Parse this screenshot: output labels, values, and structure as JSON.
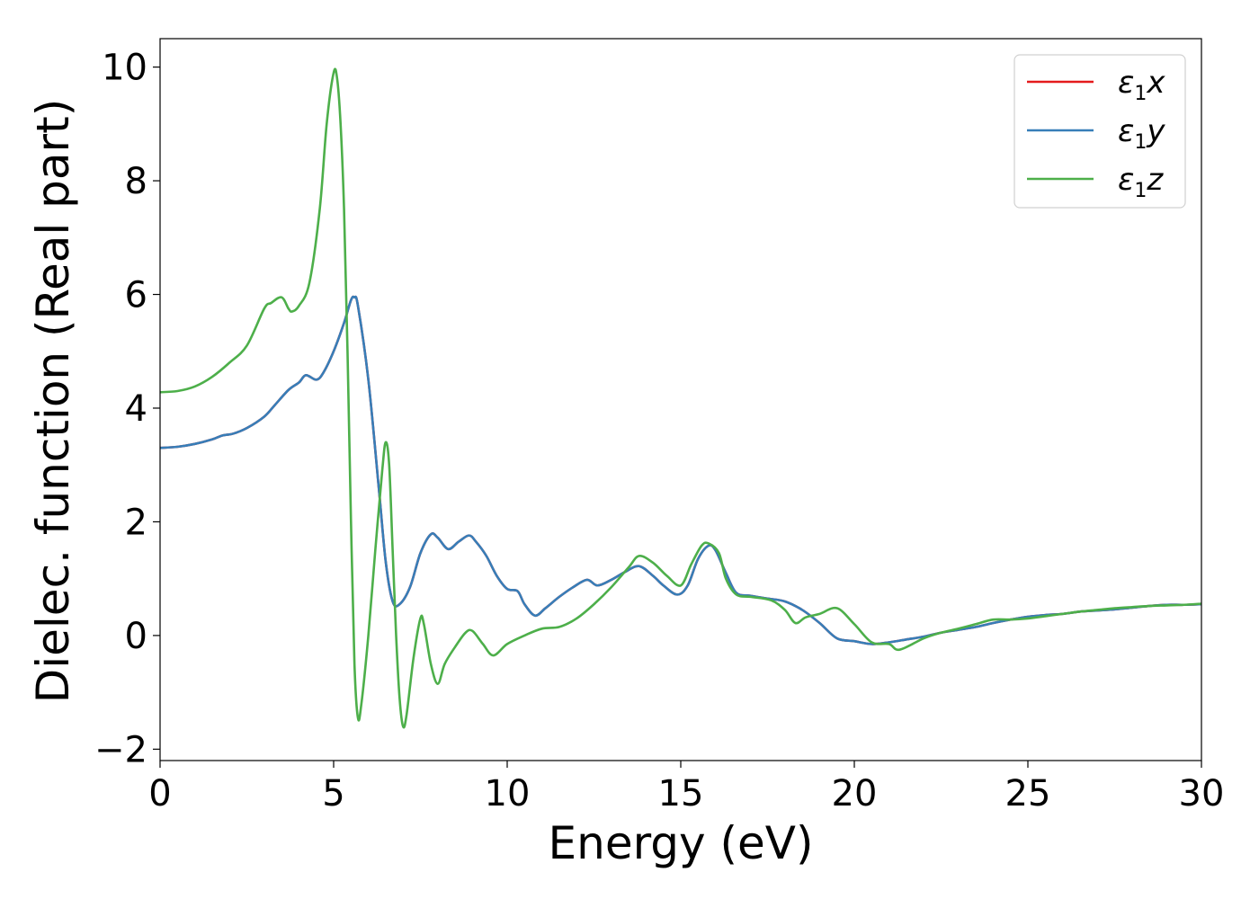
{
  "chart_data": {
    "type": "line",
    "title": "",
    "xlabel": "Energy (eV)",
    "ylabel": "Dielec. function (Real part)",
    "xlim": [
      0,
      30
    ],
    "ylim": [
      -2.2,
      10.5
    ],
    "xticks": [
      0,
      5,
      10,
      15,
      20,
      25,
      30
    ],
    "xtick_labels": [
      "0",
      "5",
      "10",
      "15",
      "20",
      "25",
      "30"
    ],
    "yticks": [
      -2,
      0,
      2,
      4,
      6,
      8,
      10
    ],
    "ytick_labels": [
      "−2",
      "0",
      "2",
      "4",
      "6",
      "8",
      "10"
    ],
    "grid": false,
    "legend_position": "top-right",
    "series": [
      {
        "name": "ε1x",
        "legend_base": "ε",
        "legend_sub": "1",
        "legend_var": "x",
        "color": "#e41a1c",
        "ref": "xy"
      },
      {
        "name": "ε1y",
        "legend_base": "ε",
        "legend_sub": "1",
        "legend_var": "y",
        "color": "#377eb8",
        "ref": "xy"
      },
      {
        "name": "ε1z",
        "legend_base": "ε",
        "legend_sub": "1",
        "legend_var": "z",
        "color": "#4daf4a",
        "ref": "z"
      }
    ],
    "curves": {
      "xy": {
        "x": [
          0,
          0.5,
          1.0,
          1.5,
          1.8,
          2.1,
          2.5,
          3.0,
          3.3,
          3.7,
          4.0,
          4.2,
          4.5,
          4.7,
          5.0,
          5.3,
          5.5,
          5.6,
          5.7,
          6.0,
          6.3,
          6.5,
          6.7,
          6.9,
          7.2,
          7.5,
          7.8,
          8.0,
          8.3,
          8.6,
          8.9,
          9.1,
          9.4,
          9.7,
          10.0,
          10.3,
          10.5,
          10.8,
          11.1,
          11.5,
          11.9,
          12.3,
          12.6,
          13.0,
          13.4,
          13.8,
          14.2,
          14.5,
          14.9,
          15.2,
          15.5,
          15.8,
          16.0,
          16.3,
          16.6,
          17.0,
          17.5,
          18.0,
          18.5,
          19.0,
          19.5,
          20.0,
          20.5,
          21.0,
          21.5,
          22.0,
          22.5,
          23.0,
          23.5,
          24.0,
          24.5,
          25.0,
          25.5,
          26.0,
          26.5,
          27.0,
          27.5,
          28.0,
          28.5,
          29.0,
          29.5,
          30.0
        ],
        "y": [
          3.3,
          3.32,
          3.37,
          3.45,
          3.52,
          3.55,
          3.65,
          3.85,
          4.05,
          4.32,
          4.45,
          4.58,
          4.5,
          4.62,
          5.0,
          5.5,
          5.9,
          5.95,
          5.8,
          4.5,
          2.6,
          1.3,
          0.6,
          0.55,
          0.85,
          1.45,
          1.78,
          1.72,
          1.52,
          1.65,
          1.76,
          1.65,
          1.4,
          1.05,
          0.82,
          0.78,
          0.55,
          0.35,
          0.48,
          0.68,
          0.85,
          0.98,
          0.88,
          0.98,
          1.12,
          1.22,
          1.05,
          0.88,
          0.72,
          0.88,
          1.35,
          1.58,
          1.5,
          1.1,
          0.75,
          0.7,
          0.65,
          0.6,
          0.45,
          0.22,
          -0.05,
          -0.1,
          -0.15,
          -0.12,
          -0.07,
          -0.02,
          0.05,
          0.1,
          0.15,
          0.22,
          0.28,
          0.33,
          0.36,
          0.38,
          0.42,
          0.44,
          0.46,
          0.49,
          0.52,
          0.54,
          0.54,
          0.55
        ]
      },
      "z": {
        "x": [
          0,
          0.5,
          1.0,
          1.5,
          2.0,
          2.5,
          3.0,
          3.2,
          3.5,
          3.7,
          3.8,
          4.0,
          4.3,
          4.6,
          4.8,
          5.0,
          5.1,
          5.2,
          5.3,
          5.4,
          5.5,
          5.6,
          5.7,
          5.8,
          6.0,
          6.2,
          6.4,
          6.5,
          6.6,
          6.7,
          6.8,
          6.9,
          7.0,
          7.1,
          7.3,
          7.5,
          7.6,
          7.8,
          8.0,
          8.2,
          8.5,
          8.8,
          9.0,
          9.3,
          9.6,
          10.0,
          10.5,
          11.0,
          11.5,
          12.0,
          12.5,
          13.0,
          13.5,
          13.8,
          14.2,
          14.6,
          15.0,
          15.3,
          15.6,
          15.8,
          16.1,
          16.3,
          16.6,
          17.0,
          17.6,
          18.0,
          18.3,
          18.6,
          19.0,
          19.5,
          20.0,
          20.5,
          21.0,
          21.3,
          22.0,
          22.5,
          23.0,
          23.5,
          24.0,
          24.5,
          25.0,
          25.5,
          26.0,
          26.5,
          27.0,
          27.5,
          28.0,
          28.5,
          29.0,
          29.5,
          30.0
        ],
        "y": [
          4.28,
          4.3,
          4.38,
          4.55,
          4.8,
          5.1,
          5.75,
          5.85,
          5.95,
          5.75,
          5.7,
          5.8,
          6.2,
          7.5,
          9.0,
          9.9,
          9.8,
          9.0,
          7.5,
          5.0,
          2.0,
          -0.5,
          -1.45,
          -1.2,
          0.0,
          1.5,
          2.9,
          3.4,
          3.0,
          1.5,
          0.0,
          -1.1,
          -1.6,
          -1.4,
          -0.4,
          0.3,
          0.2,
          -0.5,
          -0.85,
          -0.5,
          -0.2,
          0.05,
          0.08,
          -0.15,
          -0.35,
          -0.15,
          0.0,
          0.12,
          0.15,
          0.3,
          0.55,
          0.85,
          1.2,
          1.4,
          1.28,
          1.05,
          0.88,
          1.25,
          1.58,
          1.62,
          1.45,
          1.0,
          0.72,
          0.68,
          0.62,
          0.45,
          0.22,
          0.32,
          0.38,
          0.48,
          0.2,
          -0.12,
          -0.15,
          -0.25,
          -0.05,
          0.05,
          0.12,
          0.2,
          0.28,
          0.28,
          0.3,
          0.34,
          0.38,
          0.42,
          0.45,
          0.48,
          0.5,
          0.52,
          0.53,
          0.54,
          0.56
        ]
      }
    }
  }
}
